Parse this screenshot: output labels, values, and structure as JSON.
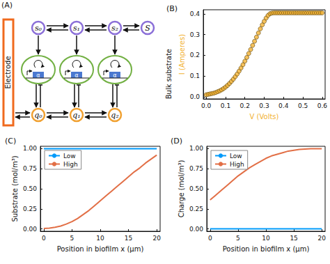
{
  "diagram": {
    "panel": "(A)",
    "electrode": "Electrode",
    "substrate_nodes": [
      "s₀",
      "s₁",
      "s₂",
      "S"
    ],
    "charge_nodes": [
      "q₀",
      "q₁",
      "q₂"
    ],
    "gene": "α",
    "side_label": "Bulk substrate"
  },
  "chart_data": [
    {
      "panel": "(B)",
      "type": "scatter",
      "x_label": "V (Volts)",
      "y_label": "I (Amperes)",
      "x": [
        0,
        0.01,
        0.02,
        0.03,
        0.04,
        0.05,
        0.06,
        0.07,
        0.08,
        0.09,
        0.1,
        0.11,
        0.12,
        0.13,
        0.14,
        0.15,
        0.16,
        0.17,
        0.18,
        0.19,
        0.2,
        0.21,
        0.22,
        0.23,
        0.24,
        0.25,
        0.26,
        0.27,
        0.28,
        0.29,
        0.3,
        0.31,
        0.32,
        0.33,
        0.34,
        0.35,
        0.36,
        0.37,
        0.38,
        0.39,
        0.4,
        0.41,
        0.42,
        0.43,
        0.44,
        0.45,
        0.46,
        0.47,
        0.48,
        0.49,
        0.5,
        0.51,
        0.52,
        0.53,
        0.54,
        0.55,
        0.56,
        0.57,
        0.58,
        0.59,
        0.6
      ],
      "values": [
        0.01,
        0.012,
        0.014,
        0.016,
        0.018,
        0.021,
        0.025,
        0.029,
        0.034,
        0.04,
        0.047,
        0.055,
        0.064,
        0.074,
        0.085,
        0.097,
        0.11,
        0.124,
        0.139,
        0.155,
        0.172,
        0.19,
        0.209,
        0.228,
        0.248,
        0.268,
        0.288,
        0.308,
        0.328,
        0.347,
        0.364,
        0.38,
        0.393,
        0.401,
        0.404,
        0.405,
        0.405,
        0.405,
        0.405,
        0.405,
        0.405,
        0.405,
        0.405,
        0.405,
        0.405,
        0.405,
        0.405,
        0.405,
        0.405,
        0.405,
        0.405,
        0.405,
        0.405,
        0.405,
        0.405,
        0.405,
        0.405,
        0.405,
        0.405,
        0.405,
        0.405
      ],
      "color": "#f2b233",
      "marker": "circle",
      "xlim": [
        -0.015,
        0.615
      ],
      "ylim": [
        -0.01,
        0.42
      ],
      "xticks": [
        {
          "value": 0,
          "label": "0.0"
        },
        0.1,
        0.2,
        0.3,
        0.4,
        0.5,
        0.6
      ],
      "yticks": [
        {
          "value": 0,
          "label": "0.0"
        },
        0.1,
        0.2,
        0.3,
        0.4
      ],
      "grid": false
    },
    {
      "panel": "(C)",
      "type": "line",
      "x_label": "Position in biofilm x (μm)",
      "y_label": "Substrate (mol/m³)",
      "x": [
        0,
        1,
        2,
        3,
        4,
        5,
        6,
        7,
        8,
        9,
        10,
        11,
        12,
        13,
        14,
        15,
        16,
        17,
        18,
        19,
        20
      ],
      "series": [
        {
          "name": "Low",
          "color": "#009afa",
          "values": [
            1,
            1,
            1,
            1,
            1,
            1,
            1,
            1,
            1,
            1,
            1,
            1,
            1,
            1,
            1,
            1,
            1,
            1,
            1,
            1,
            1
          ]
        },
        {
          "name": "High",
          "color": "#e26f46",
          "values": [
            0.005,
            0.01,
            0.02,
            0.035,
            0.06,
            0.09,
            0.13,
            0.18,
            0.23,
            0.29,
            0.35,
            0.41,
            0.47,
            0.53,
            0.59,
            0.65,
            0.71,
            0.76,
            0.82,
            0.87,
            0.92
          ]
        }
      ],
      "xlim": [
        -0.6,
        20.6
      ],
      "ylim": [
        -0.03,
        1.03
      ],
      "xticks": [
        0,
        5,
        10,
        15,
        20
      ],
      "yticks": [
        {
          "value": 0,
          "label": "0.00"
        },
        0.25,
        {
          "value": 0.5,
          "label": "0.50"
        },
        0.75,
        {
          "value": 1,
          "label": "1.00"
        }
      ],
      "legend": "upper left",
      "grid": false
    },
    {
      "panel": "(D)",
      "type": "line",
      "x_label": "Position in biofilm x (μm)",
      "y_label": "Charge (mol/m³)",
      "x": [
        0,
        1,
        2,
        3,
        4,
        5,
        6,
        7,
        8,
        9,
        10,
        11,
        12,
        13,
        14,
        15,
        16,
        17,
        18,
        19,
        20
      ],
      "series": [
        {
          "name": "Low",
          "color": "#009afa",
          "values": [
            0,
            0,
            0,
            0,
            0,
            0,
            0,
            0,
            0,
            0,
            0,
            0,
            0,
            0,
            0,
            0,
            0,
            0,
            0,
            0,
            0
          ]
        },
        {
          "name": "High",
          "color": "#e26f46",
          "values": [
            0.36,
            0.42,
            0.48,
            0.54,
            0.6,
            0.66,
            0.71,
            0.76,
            0.8,
            0.84,
            0.88,
            0.91,
            0.93,
            0.95,
            0.97,
            0.98,
            0.99,
            0.995,
            1,
            1,
            1
          ]
        }
      ],
      "xlim": [
        -0.6,
        20.6
      ],
      "ylim": [
        -0.03,
        1.03
      ],
      "xticks": [
        0,
        5,
        10,
        15,
        20
      ],
      "yticks": [
        {
          "value": 0,
          "label": "0.00"
        },
        0.25,
        {
          "value": 0.5,
          "label": "0.50"
        },
        0.75,
        {
          "value": 1,
          "label": "1.00"
        }
      ],
      "legend": "upper left",
      "grid": false
    }
  ]
}
